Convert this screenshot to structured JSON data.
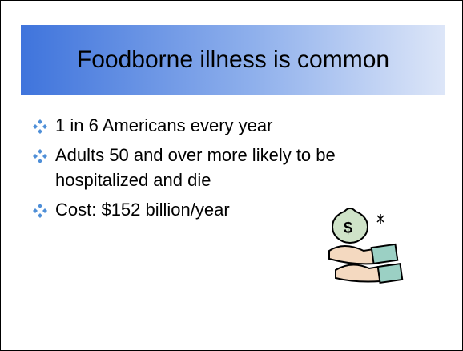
{
  "slide": {
    "title": "Foodborne illness is common",
    "bullets": [
      "1 in 6 Americans every year",
      "Adults 50 and over more likely to be hospitalized and die",
      "Cost: $152 billion/year"
    ]
  }
}
